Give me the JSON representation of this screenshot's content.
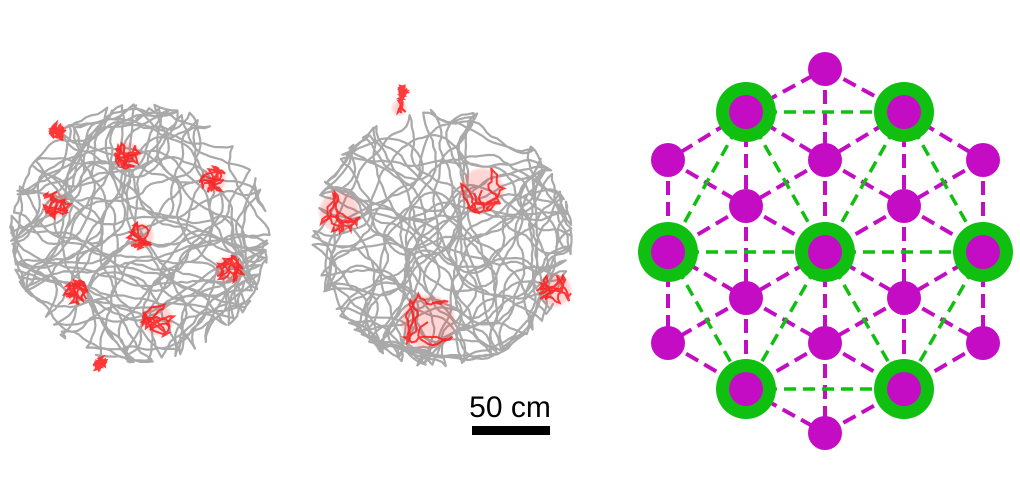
{
  "scale_bar": {
    "label": "50 cm",
    "color": "#000000"
  },
  "colors": {
    "trajectory": "#a9a9a9",
    "field": "#ff1a1a",
    "lattice_node": "#c40cc4",
    "lattice_edge": "#c40cc4",
    "grid_ring": "#10c010",
    "grid_edge": "#10c010"
  },
  "lattice": {
    "grid_node_ids": [
      0,
      2,
      5,
      9,
      10,
      12
    ]
  }
}
